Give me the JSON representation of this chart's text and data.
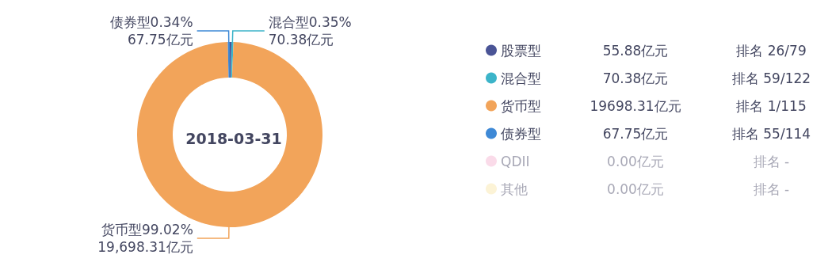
{
  "chart_data": {
    "type": "donut",
    "title": "2018-03-31",
    "categories": [
      "股票型",
      "混合型",
      "货币型",
      "债券型",
      "QDII",
      "其他"
    ],
    "values": [
      55.88,
      70.38,
      19698.31,
      67.75,
      0.0,
      0.0
    ],
    "colors": [
      "#4a5496",
      "#3cb4c9",
      "#f2a45a",
      "#3e89d6",
      "#fadbe9",
      "#fcf3d6"
    ],
    "value_labels": [
      null,
      "混合型0.35%\n70.38亿元",
      "货币型99.02%\n19,698.31亿元",
      "债券型0.34%\n67.75亿元",
      null,
      null
    ],
    "annotations": [
      "55.88亿元",
      "排名 26/79",
      "70.38亿元",
      "排名 59/122",
      "19698.31亿元",
      "排名 1/115",
      "67.75亿元",
      "排名 55/114",
      "0.00亿元",
      "排名 -",
      "0.00亿元",
      "排名 -"
    ],
    "legend": "right"
  }
}
